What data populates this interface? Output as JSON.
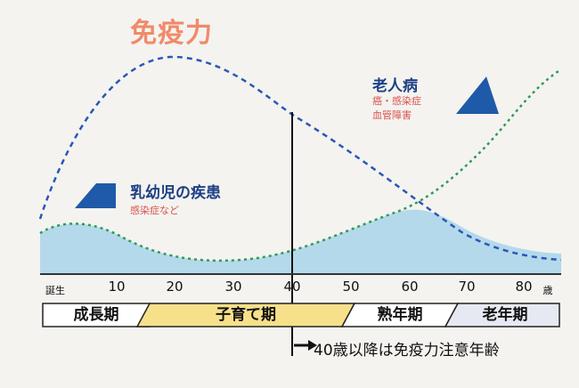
{
  "title": "免疫力",
  "elderly": {
    "label": "老人病",
    "sub_lines": [
      "癌・感染症",
      "血管障害"
    ]
  },
  "infant": {
    "label": "乳幼児の疾患",
    "sub": "感染症など"
  },
  "age_axis": {
    "birth_label": "誕生",
    "unit_label": "歳",
    "ticks": [
      "10",
      "20",
      "30",
      "40",
      "50",
      "60",
      "70",
      "80"
    ]
  },
  "stages": [
    {
      "label": "成長期"
    },
    {
      "label": "子育て期"
    },
    {
      "label": "熟年期"
    },
    {
      "label": "老年期"
    }
  ],
  "note": "40歳以降は免疫力注意年齢",
  "colors": {
    "title": "#f08a6a",
    "immunity_curve": "#2a57b8",
    "disease_curve": "#2f9a5a",
    "area_fill": "#9fcfe6",
    "stage_highlight": "#f7e08a",
    "stage_elder": "#e6e9f1",
    "label_blue": "#1d3f86",
    "label_red": "#d9534f"
  }
}
